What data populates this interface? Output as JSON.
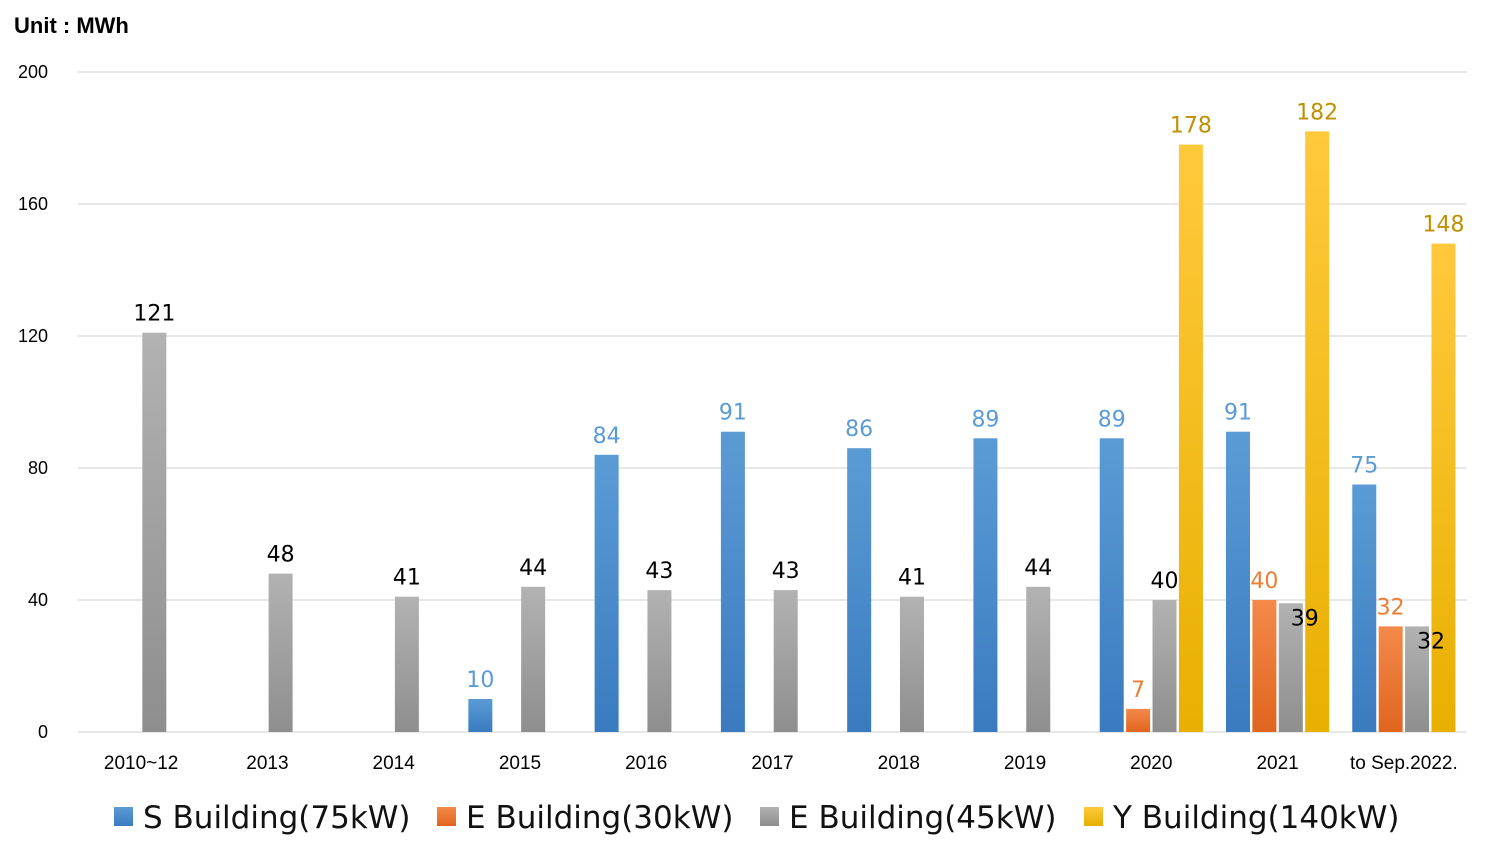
{
  "unit_label": "Unit : MWh",
  "colors": {
    "grid": "#d9d9d9",
    "label_default": "#000000"
  },
  "chart_data": {
    "type": "bar",
    "title": "",
    "xlabel": "",
    "ylabel": "Unit : MWh",
    "ylim": [
      0,
      200
    ],
    "yticks": [
      0,
      40,
      80,
      120,
      160,
      200
    ],
    "grid": true,
    "legend_position": "bottom",
    "categories": [
      "2010~12",
      "2013",
      "2014",
      "2015",
      "2016",
      "2017",
      "2018",
      "2019",
      "2020",
      "2021",
      "to Sep.2022."
    ],
    "series": [
      {
        "name": "S Building(75kW)",
        "color": "#5b9bd5",
        "color_dark": "#3a7bc0",
        "label_color": "#5b9bd5",
        "values": [
          null,
          null,
          null,
          10,
          84,
          91,
          86,
          89,
          89,
          91,
          75
        ]
      },
      {
        "name": "E Building(30kW)",
        "color": "#f4894a",
        "color_dark": "#e0651e",
        "label_color": "#ed7d31",
        "values": [
          null,
          null,
          null,
          null,
          null,
          null,
          null,
          null,
          7,
          40,
          32
        ]
      },
      {
        "name": "E Building(45kW)",
        "color": "#b2b2b2",
        "color_dark": "#8e8e8e",
        "label_color": "#000000",
        "values": [
          121,
          48,
          41,
          44,
          43,
          43,
          41,
          44,
          40,
          39,
          32
        ]
      },
      {
        "name": "Y Building(140kW)",
        "color": "#ffc93c",
        "color_dark": "#e8b000",
        "label_color": "#c09000",
        "values": [
          null,
          null,
          null,
          null,
          null,
          null,
          null,
          null,
          178,
          182,
          148
        ]
      }
    ]
  }
}
